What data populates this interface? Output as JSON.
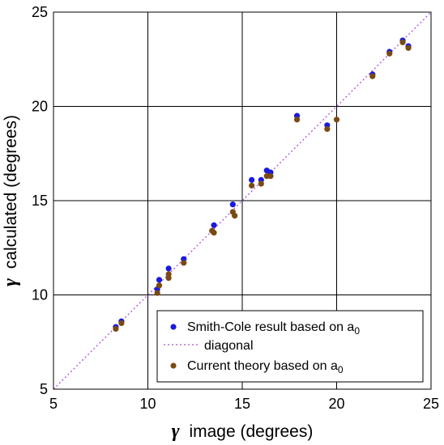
{
  "chart_data": {
    "type": "scatter",
    "xlabel": {
      "symbol": "γ",
      "text": "image (degrees)"
    },
    "ylabel": {
      "symbol": "γ",
      "text": "calculated (degrees)"
    },
    "xlim": [
      5,
      25
    ],
    "ylim": [
      5,
      25
    ],
    "xticks": [
      "5",
      "10",
      "15",
      "20",
      "25"
    ],
    "yticks": [
      "5",
      "10",
      "15",
      "20",
      "25"
    ],
    "grid": true,
    "legend_position": "bottom-right",
    "series": [
      {
        "name": "Smith-Cole result based on a",
        "subscript": "0",
        "kind": "points",
        "color": "#1a1adc",
        "points": [
          [
            8.3,
            8.3
          ],
          [
            8.6,
            8.6
          ],
          [
            10.5,
            10.3
          ],
          [
            10.6,
            10.8
          ],
          [
            11.1,
            11.4
          ],
          [
            11.9,
            11.9
          ],
          [
            13.5,
            13.7
          ],
          [
            14.5,
            14.8
          ],
          [
            15.5,
            16.1
          ],
          [
            16.0,
            16.1
          ],
          [
            16.3,
            16.6
          ],
          [
            16.5,
            16.5
          ],
          [
            17.9,
            19.5
          ],
          [
            19.5,
            19.0
          ],
          [
            21.9,
            21.7
          ],
          [
            22.8,
            22.9
          ],
          [
            23.5,
            23.5
          ],
          [
            23.8,
            23.2
          ]
        ]
      },
      {
        "name": "diagonal",
        "kind": "line",
        "color": "#b04ed8",
        "x": [
          5,
          25
        ],
        "y": [
          5,
          25
        ]
      },
      {
        "name": "Current theory based on a",
        "subscript": "0",
        "kind": "points",
        "color": "#7a4a14",
        "points": [
          [
            8.3,
            8.2
          ],
          [
            8.6,
            8.5
          ],
          [
            10.5,
            10.1
          ],
          [
            10.6,
            10.5
          ],
          [
            11.1,
            10.9
          ],
          [
            11.1,
            11.1
          ],
          [
            11.9,
            11.7
          ],
          [
            13.4,
            13.4
          ],
          [
            13.5,
            13.3
          ],
          [
            14.5,
            14.4
          ],
          [
            14.6,
            14.2
          ],
          [
            15.5,
            15.8
          ],
          [
            16.0,
            15.9
          ],
          [
            16.3,
            16.3
          ],
          [
            16.5,
            16.3
          ],
          [
            17.9,
            19.3
          ],
          [
            19.5,
            18.8
          ],
          [
            20.0,
            19.3
          ],
          [
            21.9,
            21.6
          ],
          [
            22.8,
            22.8
          ],
          [
            23.5,
            23.4
          ],
          [
            23.8,
            23.1
          ]
        ]
      }
    ]
  }
}
